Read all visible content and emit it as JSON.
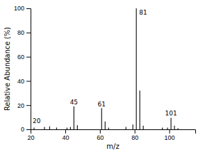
{
  "chart_data": {
    "type": "bar",
    "xlabel": "m/z",
    "ylabel": "Relative Abundance (%)",
    "x": [
      20,
      22,
      28,
      31,
      35,
      41,
      43,
      45,
      47,
      61,
      63,
      65,
      75,
      79,
      81,
      83,
      85,
      96,
      99,
      101,
      103,
      105
    ],
    "values": [
      3.5,
      1.5,
      2.0,
      2.5,
      1.5,
      1.5,
      2.0,
      19.0,
      3.5,
      17.5,
      6.5,
      1.5,
      2.0,
      4.0,
      100.0,
      32.0,
      3.0,
      1.5,
      1.5,
      9.5,
      3.0,
      1.0
    ],
    "color": "#1a1a1a",
    "xlim": [
      20,
      115
    ],
    "ylim": [
      0,
      100
    ],
    "xticks": [
      20,
      40,
      60,
      80,
      100
    ],
    "yticks": [
      0,
      20,
      40,
      60,
      80,
      100
    ],
    "grid": false,
    "annotations": [
      {
        "text": "20",
        "x": 20,
        "y": 3.5
      },
      {
        "text": "45",
        "x": 45,
        "y": 19.0
      },
      {
        "text": "61",
        "x": 61,
        "y": 17.5
      },
      {
        "text": "81",
        "x": 81,
        "y": 100.0
      },
      {
        "text": "101",
        "x": 101,
        "y": 9.5
      }
    ]
  }
}
